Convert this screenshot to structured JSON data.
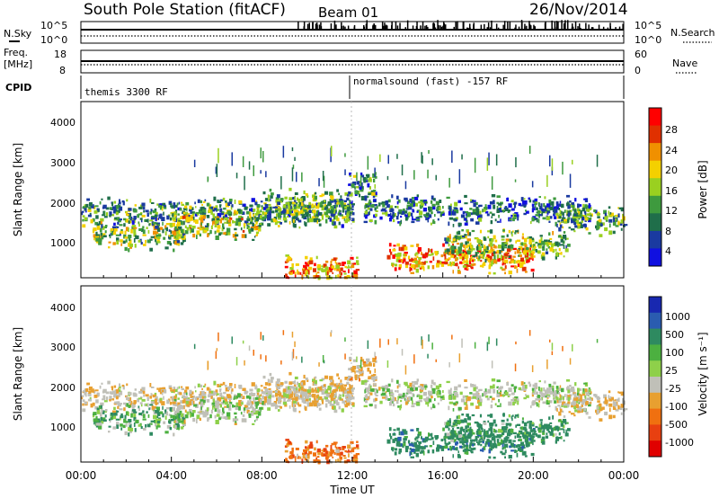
{
  "header": {
    "station": "South Pole Station (fitACF)",
    "beam": "Beam 01",
    "date": "26/Nov/2014"
  },
  "noise_panel": {
    "left_label": "N.Sky",
    "right_label": "N.Search",
    "left_ticks": [
      "10^5",
      "10^0"
    ],
    "right_ticks": [
      "10^5",
      "10^0"
    ]
  },
  "freq_panel": {
    "left_label_1": "Freq.",
    "left_label_2": "[MHz]",
    "right_label": "Nave",
    "left_ticks": [
      "18",
      "8"
    ],
    "right_ticks": [
      "60",
      "0"
    ]
  },
  "cpid_panel": {
    "label": "CPID",
    "program_1": "themis 3300 RF",
    "program_2": "normalsound (fast) -157 RF"
  },
  "power_panel": {
    "ylabel": "Slant Range [km]",
    "yticks": [
      "4000",
      "3000",
      "2000",
      "1000"
    ],
    "colorbar_label": "Power [dB]",
    "colorbar_ticks": [
      "28",
      "24",
      "20",
      "16",
      "12",
      "8",
      "4"
    ],
    "colors": [
      "#1010e0",
      "#1a3aa0",
      "#1f6e4a",
      "#3e9a3e",
      "#9ad020",
      "#f4d000",
      "#f09000",
      "#e03000",
      "#ff0000"
    ]
  },
  "velocity_panel": {
    "ylabel": "Slant Range [km]",
    "yticks": [
      "4000",
      "3000",
      "2000",
      "1000"
    ],
    "colorbar_label": "Velocity [m s⁻¹]",
    "colorbar_ticks": [
      "1000",
      "500",
      "100",
      "25",
      "-25",
      "-100",
      "-500",
      "-1000"
    ],
    "colors": [
      "#1828b0",
      "#2a5cb0",
      "#2e8a60",
      "#4cb040",
      "#8ed04a",
      "#c0c0b8",
      "#e8a030",
      "#f07010",
      "#e84010",
      "#e00000"
    ]
  },
  "xaxis": {
    "label": "Time UT",
    "ticks": [
      "00:00",
      "04:00",
      "08:00",
      "12:00",
      "16:00",
      "20:00",
      "00:00"
    ]
  },
  "chart_data": {
    "type": "heatmap",
    "title": "South Pole Station (fitACF) Beam 01 26/Nov/2014",
    "xlabel": "Time UT",
    "ylabel": "Slant Range [km]",
    "xlim": [
      "00:00",
      "24:00"
    ],
    "ylim": [
      180,
      4600
    ],
    "colorbars": [
      {
        "name": "Power [dB]",
        "range": [
          0,
          30
        ]
      },
      {
        "name": "Velocity [m s⁻¹]",
        "range": [
          -1000,
          1000
        ]
      }
    ],
    "scatter_bands": [
      {
        "t_start": 0.0,
        "t_end": 12.0,
        "range_km": 1850,
        "power_db": 10,
        "velocity": -10
      },
      {
        "t_start": 0.5,
        "t_end": 4.5,
        "range_km": 1300,
        "power_db": 14,
        "velocity": 80
      },
      {
        "t_start": 4.0,
        "t_end": 8.0,
        "range_km": 1550,
        "power_db": 16,
        "velocity": 30
      },
      {
        "t_start": 8.0,
        "t_end": 12.0,
        "range_km": 2050,
        "power_db": 12,
        "velocity": -15
      },
      {
        "t_start": 11.8,
        "t_end": 13.0,
        "range_km": 2500,
        "power_db": 10,
        "velocity": -40
      },
      {
        "t_start": 12.5,
        "t_end": 22.5,
        "range_km": 1900,
        "power_db": 8,
        "velocity": 20
      },
      {
        "t_start": 21.0,
        "t_end": 24.0,
        "range_km": 1650,
        "power_db": 12,
        "velocity": -15
      },
      {
        "t_start": 9.0,
        "t_end": 12.2,
        "range_km": 400,
        "power_db": 22,
        "velocity": -200
      },
      {
        "t_start": 13.5,
        "t_end": 20.0,
        "range_km": 700,
        "power_db": 22,
        "velocity": 320
      },
      {
        "t_start": 16.0,
        "t_end": 21.5,
        "range_km": 1050,
        "power_db": 14,
        "velocity": 200
      }
    ]
  }
}
